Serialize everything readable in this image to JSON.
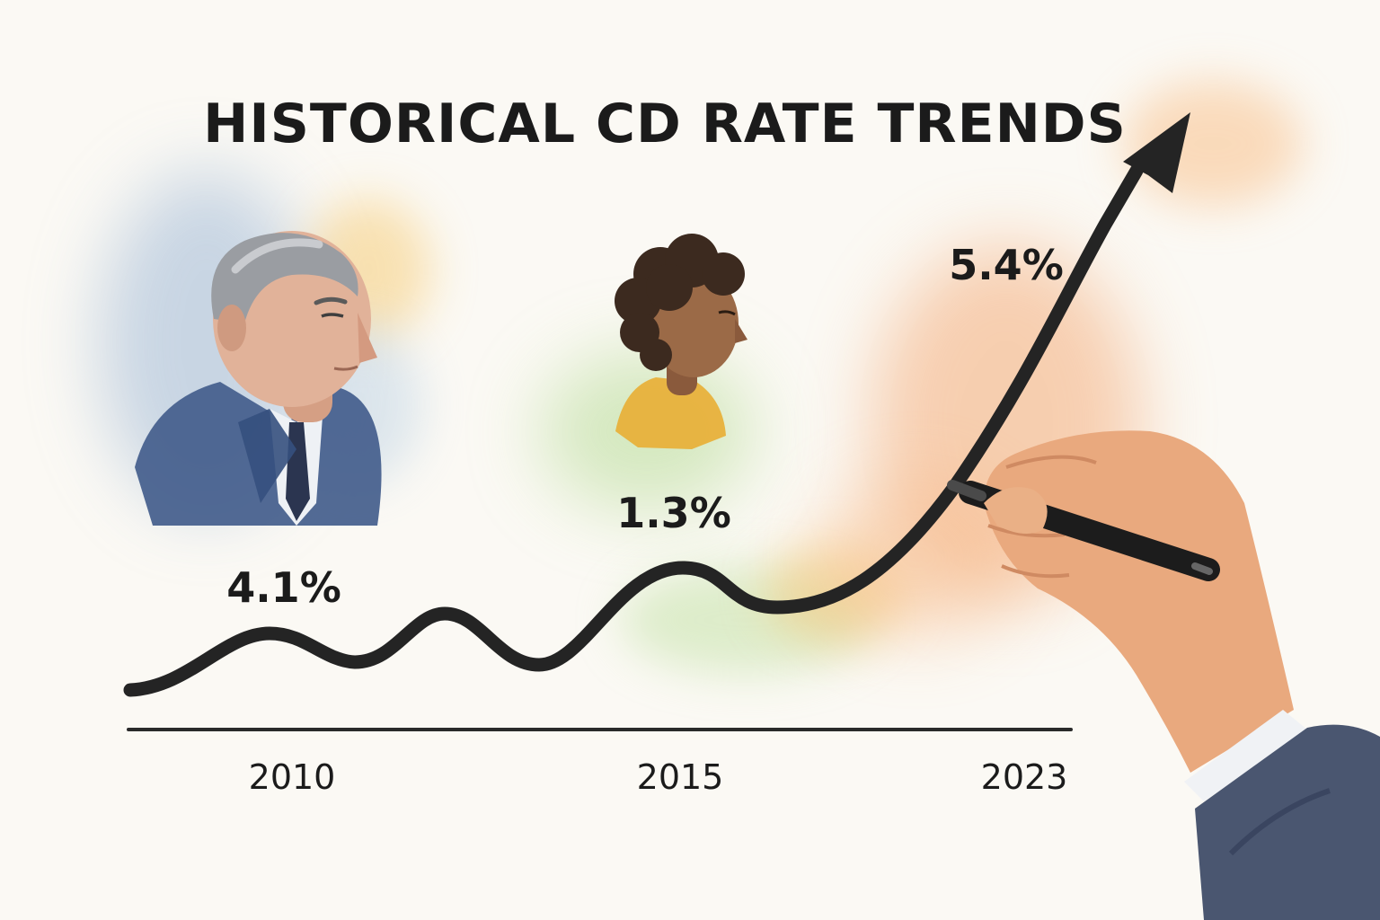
{
  "chart_data": {
    "type": "line",
    "title": "HISTORICAL CD RATE TRENDS",
    "xlabel": "",
    "ylabel": "",
    "x": [
      2010,
      2015,
      2023
    ],
    "x_tick_labels": [
      "2010",
      "2015",
      "2023"
    ],
    "series": [
      {
        "values": [
          4.1,
          1.3,
          5.4
        ],
        "data_labels": [
          "4.1%",
          "1.3%",
          "5.4%"
        ]
      }
    ],
    "grid": false,
    "legend": "none",
    "colors": {
      "line": "#242424",
      "axis": "#2a2a2a",
      "text": "#1b1b1b"
    }
  },
  "illustrations": [
    {
      "name": "older-man-portrait",
      "icon": "man-in-suit-watercolor"
    },
    {
      "name": "young-woman-portrait",
      "icon": "woman-yellow-top-watercolor"
    },
    {
      "name": "drawing-hand",
      "icon": "hand-holding-pen"
    }
  ]
}
